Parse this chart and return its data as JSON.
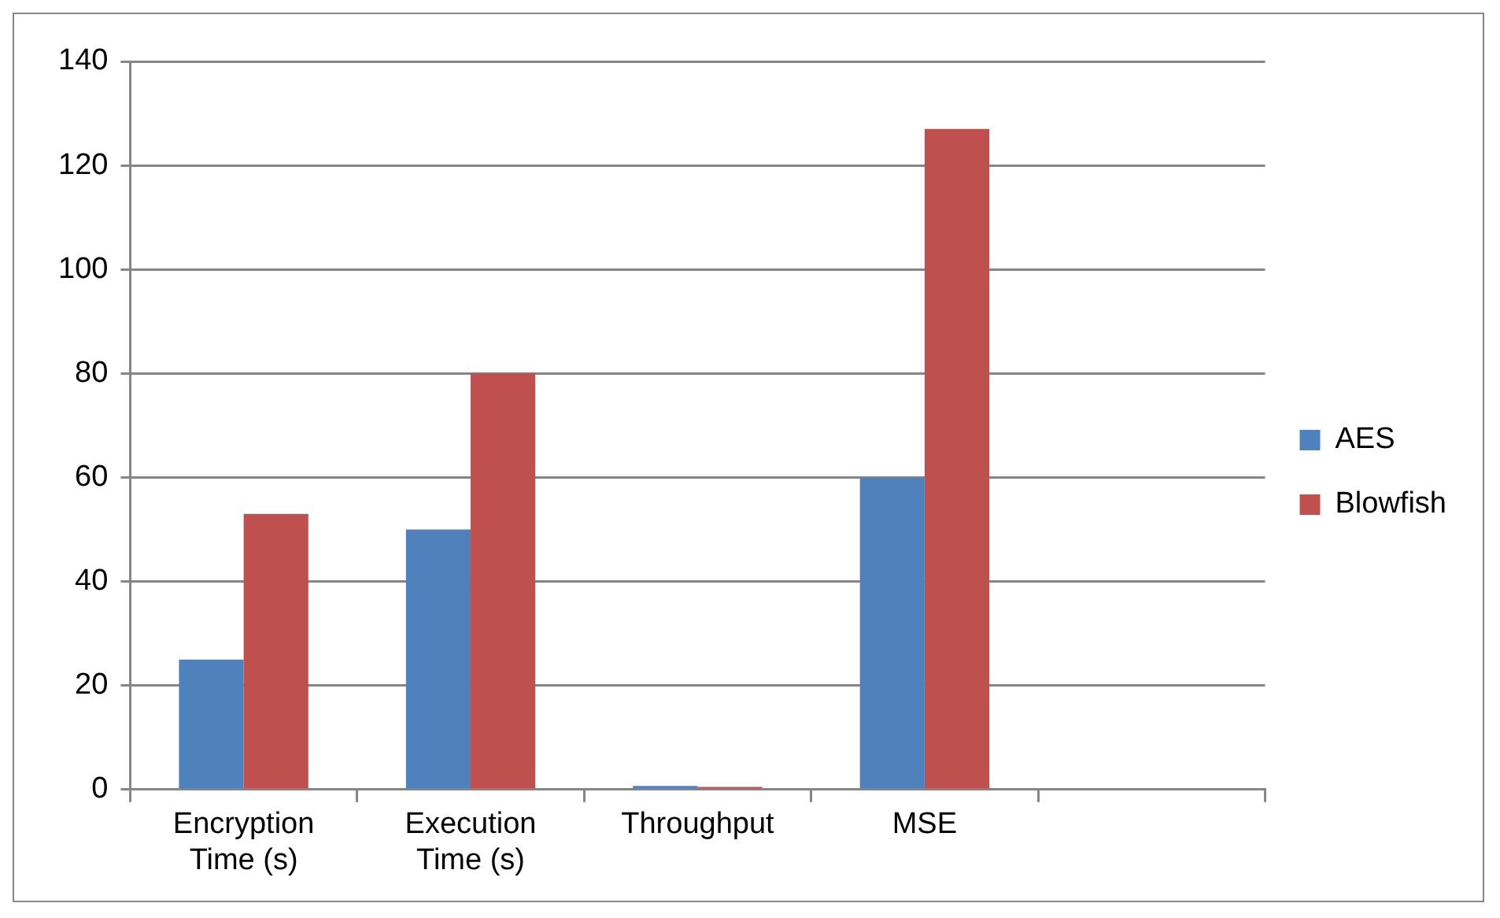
{
  "chart_data": {
    "type": "bar",
    "categories": [
      "Encryption Time (s)",
      "Execution Time (s)",
      "Throughput",
      "MSE",
      null
    ],
    "series": [
      {
        "name": "AES",
        "color": "#4f81bd",
        "values": [
          25,
          50,
          0.7,
          60,
          null
        ]
      },
      {
        "name": "Blowfish",
        "color": "#c0504d",
        "values": [
          53,
          80,
          0.5,
          127,
          null
        ]
      }
    ],
    "ylim": [
      0,
      140
    ],
    "yticks": [
      0,
      20,
      40,
      60,
      80,
      100,
      120,
      140
    ],
    "grid": "y",
    "legend": "right"
  }
}
